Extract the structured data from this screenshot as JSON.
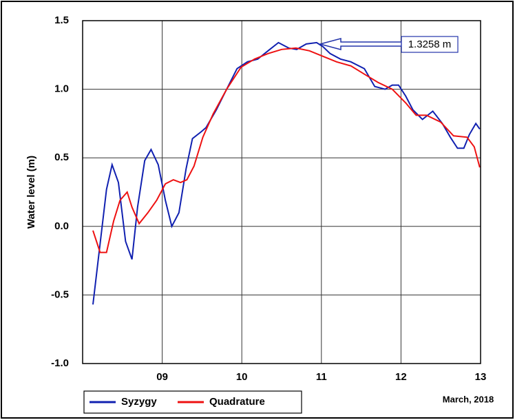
{
  "chart_data": {
    "type": "line",
    "y_label": "Water level (m)",
    "x_note": "March, 2018",
    "annotation": "1.3258 m",
    "xlim": [
      8,
      13
    ],
    "ylim": [
      -1.0,
      1.5
    ],
    "xticks": [
      {
        "value": 9,
        "label": "09"
      },
      10,
      11,
      12,
      13
    ],
    "yticks": [
      {
        "value": -1,
        "label": "-1.0"
      },
      -0.5,
      {
        "value": 0,
        "label": "0.0"
      },
      0.5,
      {
        "value": 1,
        "label": "1.0"
      },
      1.5
    ],
    "grid": true,
    "legend": "bottom-left",
    "series": [
      {
        "name": "Syzygy",
        "color": "#1020b0",
        "x": [
          8.13,
          8.3,
          8.37,
          8.45,
          8.54,
          8.62,
          8.69,
          8.78,
          8.86,
          8.95,
          9.04,
          9.12,
          9.21,
          9.3,
          9.38,
          9.49,
          9.55,
          9.68,
          9.81,
          9.94,
          10.07,
          10.2,
          10.33,
          10.46,
          10.59,
          10.69,
          10.81,
          10.94,
          11.02,
          11.11,
          11.24,
          11.37,
          11.54,
          11.67,
          11.8,
          11.89,
          11.97,
          12.06,
          12.15,
          12.27,
          12.4,
          12.52,
          12.62,
          12.71,
          12.79,
          12.86,
          12.94,
          12.99
        ],
        "values": [
          -0.57,
          0.27,
          0.45,
          0.32,
          -0.11,
          -0.24,
          0.14,
          0.48,
          0.56,
          0.45,
          0.19,
          0.0,
          0.1,
          0.42,
          0.64,
          0.69,
          0.72,
          0.85,
          1.0,
          1.15,
          1.2,
          1.22,
          1.28,
          1.34,
          1.3,
          1.29,
          1.33,
          1.34,
          1.31,
          1.26,
          1.22,
          1.2,
          1.15,
          1.02,
          1.0,
          1.03,
          1.03,
          0.95,
          0.85,
          0.78,
          0.84,
          0.75,
          0.65,
          0.57,
          0.57,
          0.67,
          0.75,
          0.71
        ]
      },
      {
        "name": "Quadrature",
        "color": "#ee1111",
        "x": [
          8.13,
          8.22,
          8.3,
          8.39,
          8.47,
          8.56,
          8.62,
          8.71,
          8.82,
          8.93,
          9.04,
          9.14,
          9.23,
          9.31,
          9.4,
          9.51,
          9.64,
          9.81,
          9.99,
          10.16,
          10.33,
          10.5,
          10.68,
          10.85,
          11.02,
          11.19,
          11.37,
          11.54,
          11.71,
          11.89,
          12.06,
          12.19,
          12.32,
          12.5,
          12.66,
          12.83,
          12.92,
          12.99
        ],
        "values": [
          -0.03,
          -0.19,
          -0.19,
          0.04,
          0.19,
          0.25,
          0.14,
          0.02,
          0.1,
          0.19,
          0.31,
          0.34,
          0.32,
          0.34,
          0.44,
          0.65,
          0.82,
          1.0,
          1.16,
          1.22,
          1.26,
          1.29,
          1.3,
          1.28,
          1.24,
          1.2,
          1.17,
          1.11,
          1.05,
          1.0,
          0.9,
          0.81,
          0.81,
          0.76,
          0.66,
          0.65,
          0.58,
          0.43
        ]
      }
    ]
  }
}
